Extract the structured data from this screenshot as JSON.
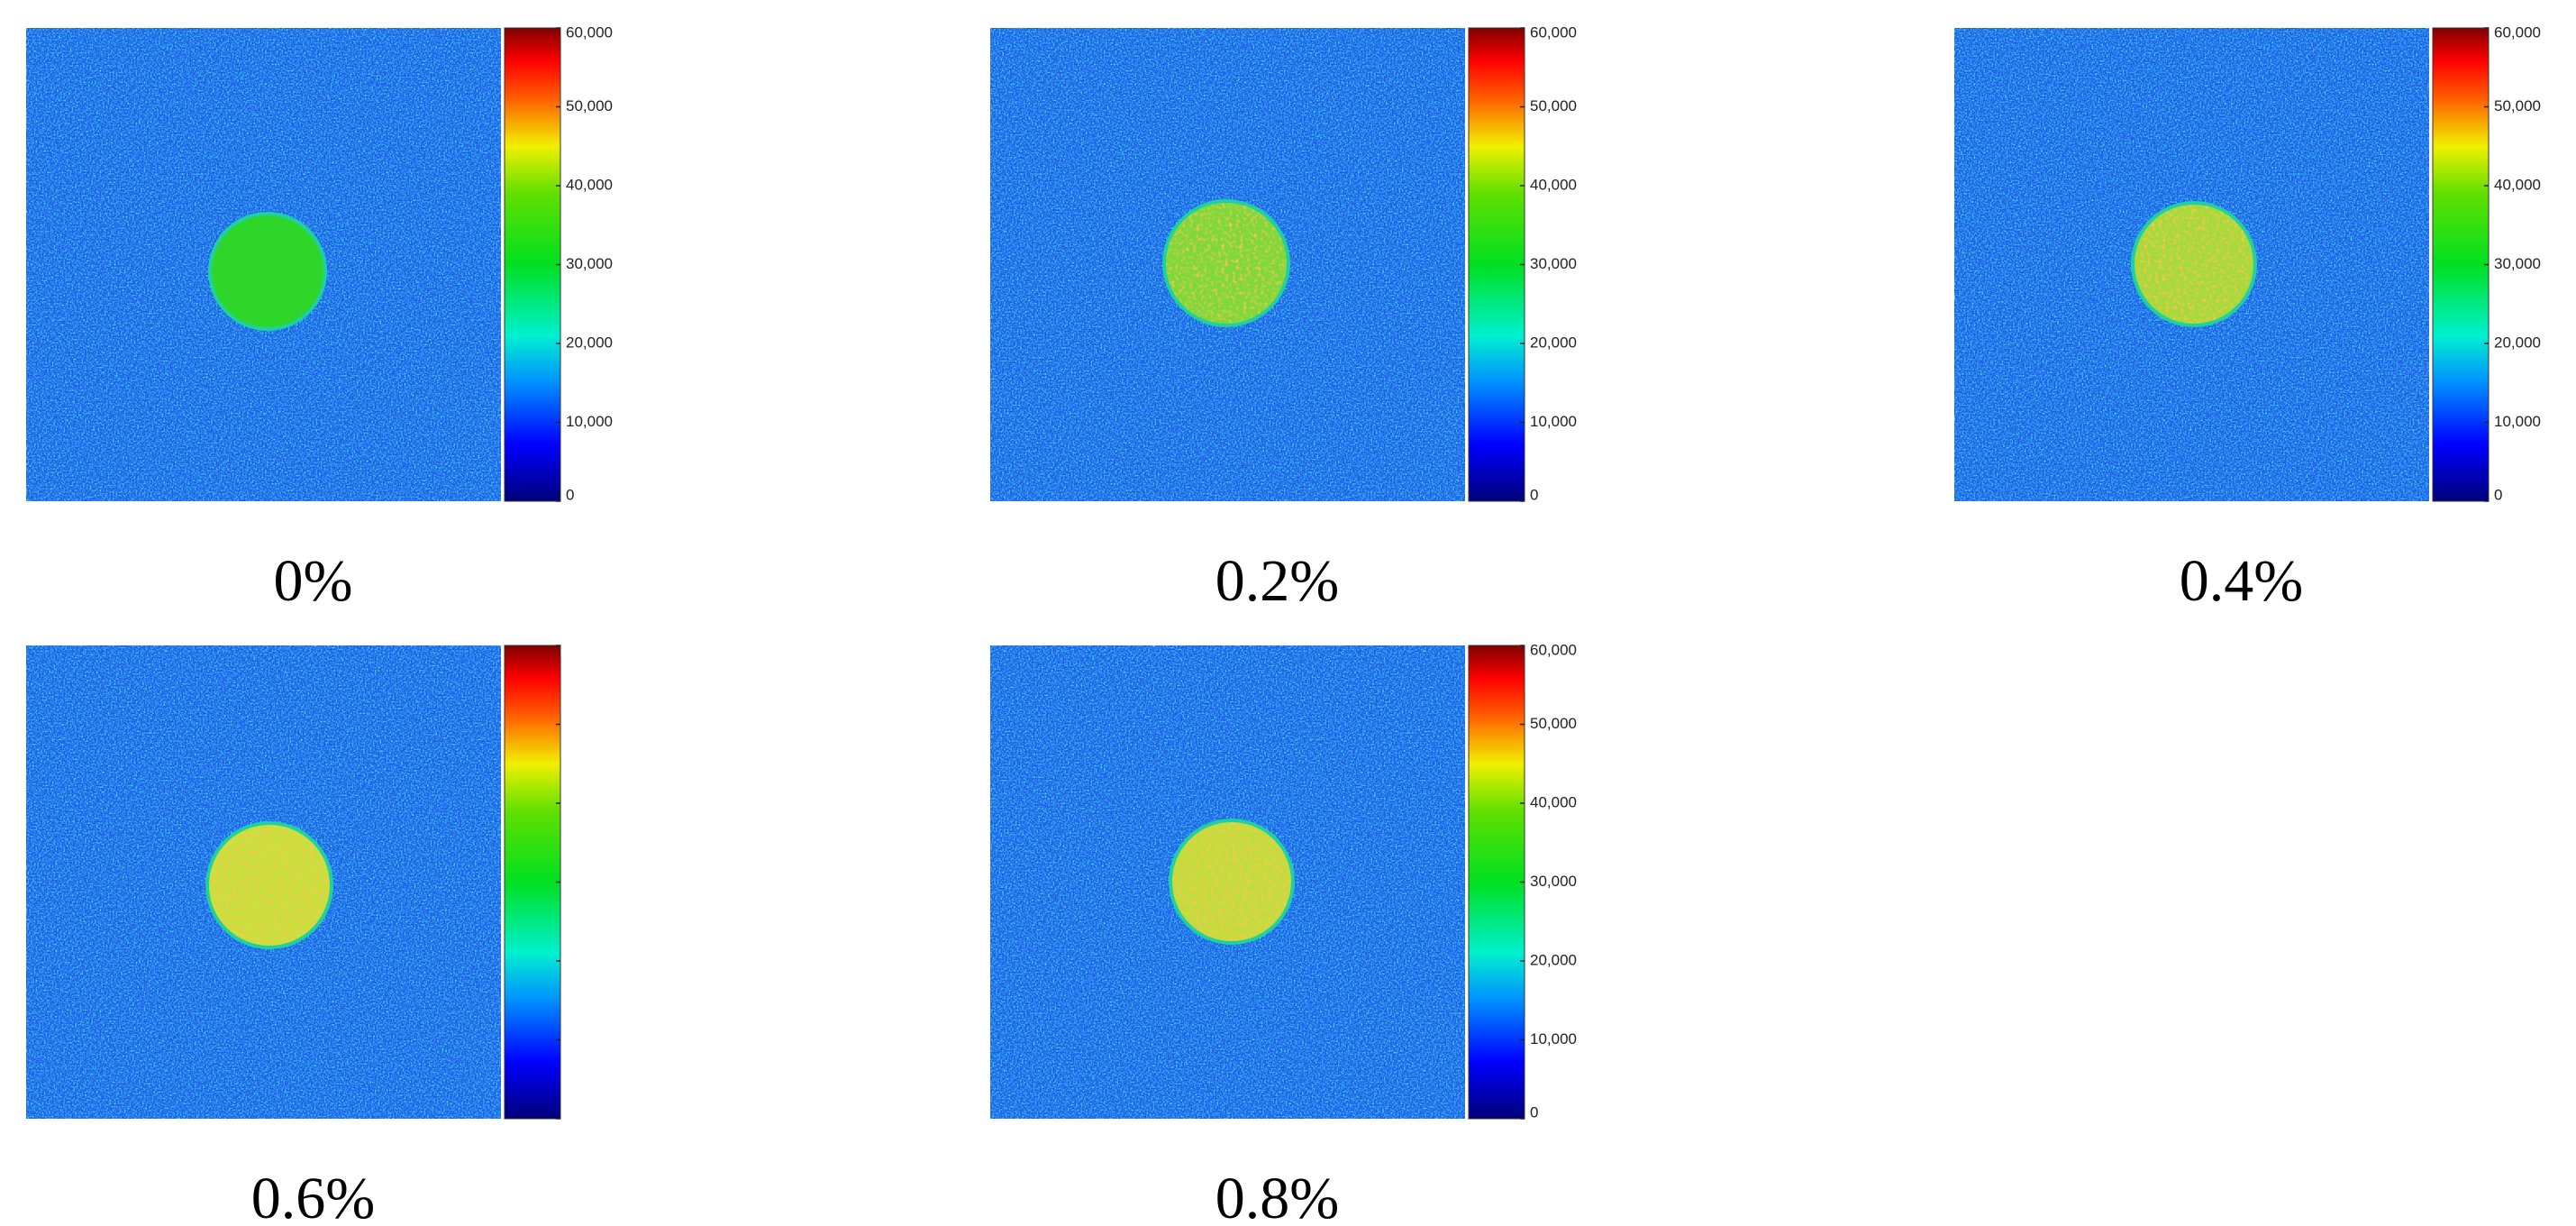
{
  "figure": {
    "panels": [
      {
        "label": "0%",
        "color": "#2fd62a",
        "colorbar": {
          "lim": [
            0,
            60000
          ],
          "tick_labels": true,
          "ticks": [
            {
              "value": 0,
              "label": "0"
            },
            {
              "value": 10000,
              "label": "10,000"
            },
            {
              "value": 20000,
              "label": "20,000"
            },
            {
              "value": 30000,
              "label": "30,000"
            },
            {
              "value": 40000,
              "label": "40,000"
            },
            {
              "value": 50000,
              "label": "50,000"
            },
            {
              "value": 60000,
              "label": "60,000"
            }
          ]
        }
      },
      {
        "label": "0.2%",
        "color": "#7ed83a",
        "colorbar": {
          "lim": [
            0,
            60000
          ],
          "tick_labels": true,
          "ticks": [
            {
              "value": 0,
              "label": "0"
            },
            {
              "value": 10000,
              "label": "10,000"
            },
            {
              "value": 20000,
              "label": "20,000"
            },
            {
              "value": 30000,
              "label": "30,000"
            },
            {
              "value": 40000,
              "label": "40,000"
            },
            {
              "value": 50000,
              "label": "50,000"
            },
            {
              "value": 60000,
              "label": "60,000"
            }
          ]
        }
      },
      {
        "label": "0.4%",
        "color": "#a6da3a",
        "colorbar": {
          "lim": [
            0,
            60000
          ],
          "tick_labels": true,
          "ticks": [
            {
              "value": 0,
              "label": "0"
            },
            {
              "value": 10000,
              "label": "10,000"
            },
            {
              "value": 20000,
              "label": "20,000"
            },
            {
              "value": 30000,
              "label": "30,000"
            },
            {
              "value": 40000,
              "label": "40,000"
            },
            {
              "value": 50000,
              "label": "50,000"
            },
            {
              "value": 60000,
              "label": "60,000"
            }
          ]
        }
      },
      {
        "label": "0.6%",
        "color": "#c8e03c",
        "colorbar": {
          "lim": [
            0,
            60000
          ],
          "tick_labels": false,
          "ticks": [
            0,
            10000,
            20000,
            30000,
            40000,
            50000,
            60000
          ]
        }
      },
      {
        "label": "0.8%",
        "color": "#c2dc3c",
        "colorbar": {
          "lim": [
            0,
            60000
          ],
          "tick_labels": true,
          "ticks": [
            {
              "value": 0,
              "label": "0"
            },
            {
              "value": 10000,
              "label": "10,000"
            },
            {
              "value": 20000,
              "label": "20,000"
            },
            {
              "value": 30000,
              "label": "30,000"
            },
            {
              "value": 40000,
              "label": "40,000"
            },
            {
              "value": 50000,
              "label": "50,000"
            },
            {
              "value": 60000,
              "label": "60,000"
            }
          ]
        }
      }
    ]
  }
}
